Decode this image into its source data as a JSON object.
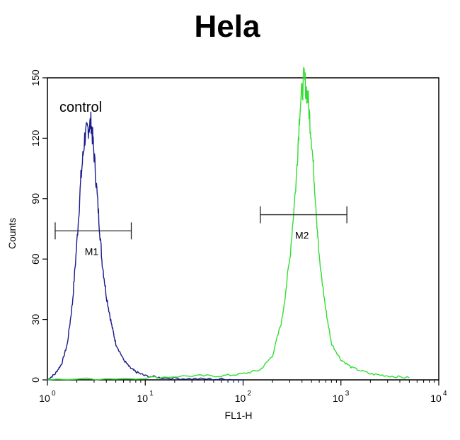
{
  "chart_data": {
    "type": "line",
    "title": "Hela",
    "xlabel": "FL1-H",
    "ylabel": "Counts",
    "x_scale": "log",
    "xlim": [
      1,
      10000
    ],
    "ylim": [
      0,
      150
    ],
    "x_ticks": [
      {
        "value": 1,
        "base": "10",
        "exp": "0"
      },
      {
        "value": 10,
        "base": "10",
        "exp": "1"
      },
      {
        "value": 100,
        "base": "10",
        "exp": "2"
      },
      {
        "value": 1000,
        "base": "10",
        "exp": "3"
      },
      {
        "value": 10000,
        "base": "10",
        "exp": "4"
      }
    ],
    "y_ticks": [
      {
        "value": 0,
        "label": "0"
      },
      {
        "value": 30,
        "label": "30"
      },
      {
        "value": 60,
        "label": "60"
      },
      {
        "value": 90,
        "label": "90"
      },
      {
        "value": 120,
        "label": "120"
      },
      {
        "value": 150,
        "label": "150"
      }
    ],
    "annotation": "control",
    "series": [
      {
        "color": "#1a1a8c",
        "x": [
          1,
          1.2,
          1.4,
          1.6,
          1.8,
          2.0,
          2.2,
          2.4,
          2.6,
          2.8,
          3.0,
          3.3,
          3.6,
          4.0,
          4.5,
          5.0,
          6.0,
          7.0,
          8.0,
          10,
          15,
          30,
          60,
          100
        ],
        "y": [
          0,
          3,
          8,
          18,
          38,
          68,
          100,
          120,
          125,
          128,
          112,
          85,
          60,
          42,
          28,
          18,
          10,
          6,
          4,
          2,
          1,
          0.5,
          0.3,
          0
        ]
      },
      {
        "color": "#33dd33",
        "x": [
          1,
          10,
          30,
          60,
          100,
          150,
          200,
          250,
          300,
          350,
          380,
          420,
          460,
          500,
          550,
          600,
          700,
          800,
          1000,
          1300,
          2000,
          3000,
          5000
        ],
        "y": [
          0,
          1,
          2,
          2,
          3,
          5,
          12,
          30,
          60,
          100,
          135,
          150,
          140,
          120,
          90,
          60,
          35,
          18,
          10,
          6,
          3,
          2,
          1
        ]
      }
    ],
    "markers": [
      {
        "label": "M1",
        "x1": 1.2,
        "x2": 7.2,
        "y": 74
      },
      {
        "label": "M2",
        "x1": 150,
        "x2": 1150,
        "y": 82
      }
    ]
  }
}
